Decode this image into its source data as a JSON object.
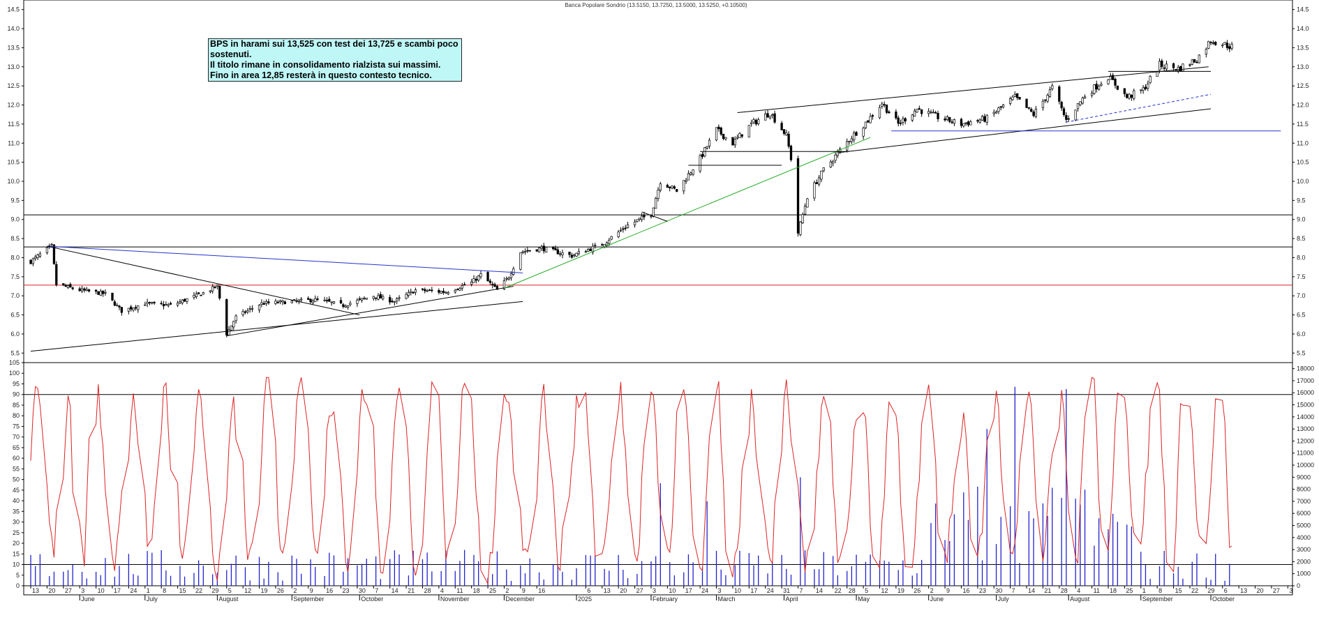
{
  "header": {
    "title": "Banca Popolare Sondrio (13.5150, 13.7250, 13.5000, 13.5250, +0.10500)"
  },
  "annotation": {
    "text": "BPS in harami sui 13,525 con test dei 13,725 e scambi poco sostenuti.\nIl titolo rimane in consolidamento rialzista sui massimi.\nFino in area 12,85 resterà in questo contesto tecnico."
  },
  "chart_data": [
    {
      "type": "candlestick",
      "title": "Banca Popolare Sondrio (13.5150, 13.7250, 13.5000, 13.5250, +0.10500)",
      "ylim": [
        5.25,
        14.75
      ],
      "y_ticks": [
        "5.5",
        "6.0",
        "6.5",
        "7.0",
        "7.5",
        "8.0",
        "8.5",
        "9.0",
        "9.5",
        "10.0",
        "10.5",
        "11.0",
        "11.5",
        "12.0",
        "12.5",
        "13.0",
        "13.5",
        "14.0",
        "14.5"
      ],
      "last": {
        "open": 13.515,
        "high": 13.725,
        "low": 13.5,
        "close": 13.525,
        "change": 0.105
      },
      "close_path": [
        [
          "2024-05-13",
          7.9
        ],
        [
          "2024-05-22",
          8.3
        ],
        [
          "2024-05-24",
          7.3
        ],
        [
          "2024-06-03",
          7.15
        ],
        [
          "2024-06-14",
          7.05
        ],
        [
          "2024-06-21",
          6.6
        ],
        [
          "2024-07-01",
          6.8
        ],
        [
          "2024-07-12",
          6.75
        ],
        [
          "2024-07-25",
          7.05
        ],
        [
          "2024-08-01",
          7.25
        ],
        [
          "2024-08-05",
          6.0
        ],
        [
          "2024-08-09",
          6.45
        ],
        [
          "2024-08-20",
          6.8
        ],
        [
          "2024-09-02",
          6.85
        ],
        [
          "2024-09-13",
          6.9
        ],
        [
          "2024-09-24",
          6.75
        ],
        [
          "2024-10-07",
          7.0
        ],
        [
          "2024-10-16",
          6.85
        ],
        [
          "2024-10-25",
          7.15
        ],
        [
          "2024-11-07",
          7.1
        ],
        [
          "2024-11-18",
          7.35
        ],
        [
          "2024-11-22",
          7.55
        ],
        [
          "2024-11-29",
          7.15
        ],
        [
          "2024-12-04",
          7.5
        ],
        [
          "2024-12-09",
          8.15
        ],
        [
          "2024-12-18",
          8.25
        ],
        [
          "2024-12-31",
          8.05
        ],
        [
          "2025-01-13",
          8.35
        ],
        [
          "2025-01-24",
          8.85
        ],
        [
          "2025-02-03",
          9.15
        ],
        [
          "2025-02-07",
          10.0
        ],
        [
          "2025-02-14",
          9.75
        ],
        [
          "2025-02-24",
          10.6
        ],
        [
          "2025-03-03",
          11.35
        ],
        [
          "2025-03-10",
          11.0
        ],
        [
          "2025-03-18",
          11.5
        ],
        [
          "2025-03-26",
          11.8
        ],
        [
          "2025-04-02",
          11.2
        ],
        [
          "2025-04-04",
          10.6
        ],
        [
          "2025-04-07",
          8.65
        ],
        [
          "2025-04-11",
          9.6
        ],
        [
          "2025-04-18",
          10.3
        ],
        [
          "2025-04-29",
          11.1
        ],
        [
          "2025-05-07",
          11.6
        ],
        [
          "2025-05-13",
          12.05
        ],
        [
          "2025-05-20",
          11.5
        ],
        [
          "2025-05-28",
          11.9
        ],
        [
          "2025-06-05",
          11.7
        ],
        [
          "2025-06-16",
          11.5
        ],
        [
          "2025-06-27",
          11.65
        ],
        [
          "2025-07-09",
          12.2
        ],
        [
          "2025-07-17",
          11.75
        ],
        [
          "2025-07-25",
          12.45
        ],
        [
          "2025-07-31",
          11.6
        ],
        [
          "2025-08-08",
          12.25
        ],
        [
          "2025-08-18",
          12.75
        ],
        [
          "2025-08-26",
          12.2
        ],
        [
          "2025-09-02",
          12.4
        ],
        [
          "2025-09-09",
          13.05
        ],
        [
          "2025-09-17",
          12.95
        ],
        [
          "2025-09-25",
          13.2
        ],
        [
          "2025-10-01",
          13.7
        ],
        [
          "2025-10-10",
          13.525
        ]
      ],
      "horizontal_levels": [
        {
          "y": 9.12,
          "color": "#000000"
        },
        {
          "y": 8.28,
          "color": "#000000"
        },
        {
          "y": 7.28,
          "color": "#dd2222"
        }
      ],
      "trend_lines": [
        {
          "points": [
            [
              "2024-05-20",
              8.3
            ],
            [
              "2024-12-10",
              7.6
            ]
          ],
          "color": "#2233cc",
          "dash": false
        },
        {
          "points": [
            [
              "2024-05-20",
              8.3
            ],
            [
              "2024-10-01",
              6.5
            ]
          ],
          "color": "#000000",
          "dash": false
        },
        {
          "points": [
            [
              "2024-05-13",
              5.55
            ],
            [
              "2024-12-10",
              6.85
            ]
          ],
          "color": "#000000",
          "dash": false
        },
        {
          "points": [
            [
              "2024-08-05",
              5.95
            ],
            [
              "2024-12-06",
              7.25
            ]
          ],
          "color": "#000000",
          "dash": false
        },
        {
          "points": [
            [
              "2024-12-02",
              7.2
            ],
            [
              "2025-05-08",
              11.15
            ]
          ],
          "color": "#22aa22",
          "dash": false
        },
        {
          "points": [
            [
              "2025-03-12",
              11.8
            ],
            [
              "2025-09-30",
              13.0
            ]
          ],
          "color": "#000000",
          "dash": false
        },
        {
          "points": [
            [
              "2025-04-24",
              10.75
            ],
            [
              "2025-10-01",
              11.9
            ]
          ],
          "color": "#000000",
          "dash": false
        },
        {
          "points": [
            [
              "2025-05-17",
              11.32
            ],
            [
              "2025-10-31",
              11.32
            ]
          ],
          "color": "#2233cc",
          "dash": false
        },
        {
          "points": [
            [
              "2025-07-31",
              11.55
            ],
            [
              "2025-10-01",
              12.28
            ]
          ],
          "color": "#2233cc",
          "dash": true
        },
        {
          "points": [
            [
              "2025-02-24",
              10.78
            ],
            [
              "2025-04-29",
              10.78
            ]
          ],
          "color": "#000000",
          "dash": false
        },
        {
          "points": [
            [
              "2025-02-19",
              10.42
            ],
            [
              "2025-03-31",
              10.42
            ]
          ],
          "color": "#000000",
          "dash": false
        },
        {
          "points": [
            [
              "2025-08-18",
              12.88
            ],
            [
              "2025-10-01",
              12.88
            ]
          ],
          "color": "#000000",
          "dash": false
        },
        {
          "points": [
            [
              "2025-01-30",
              9.2
            ],
            [
              "2025-02-10",
              8.95
            ]
          ],
          "color": "#000000",
          "dash": false
        }
      ]
    },
    {
      "type": "line",
      "series": [
        {
          "values_range": [
            0,
            100
          ],
          "color": "#dd2222"
        }
      ],
      "ylim": [
        0,
        105
      ],
      "y_ticks": [
        "0",
        "5",
        "10",
        "15",
        "20",
        "25",
        "30",
        "35",
        "40",
        "45",
        "50",
        "55",
        "60",
        "65",
        "70",
        "75",
        "80",
        "85",
        "90",
        "95",
        "100",
        "105"
      ],
      "levels": [
        90,
        10
      ]
    },
    {
      "type": "bar",
      "series": [
        {
          "color": "#2222cc"
        }
      ],
      "ylim": [
        0,
        18500
      ],
      "y_ticks": [
        "0",
        "1000",
        "2000",
        "3000",
        "4000",
        "5000",
        "6000",
        "7000",
        "8000",
        "9000",
        "10000",
        "11000",
        "12000",
        "13000",
        "14000",
        "15000",
        "16000",
        "17000",
        "18000"
      ],
      "peaks": [
        [
          "2025-02-07",
          8500
        ],
        [
          "2025-07-09",
          16500
        ],
        [
          "2025-07-31",
          16300
        ],
        [
          "2025-06-27",
          13000
        ],
        [
          "2025-04-07",
          9000
        ],
        [
          "2025-02-27",
          7000
        ]
      ]
    }
  ],
  "x_axis": {
    "range": [
      "2024-05-10",
      "2025-11-05"
    ],
    "day_labels": [
      [
        "2024-05-13",
        "13"
      ],
      [
        "2024-05-20",
        "20"
      ],
      [
        "2024-05-27",
        "27"
      ],
      [
        "2024-06-03",
        "3"
      ],
      [
        "2024-06-10",
        "10"
      ],
      [
        "2024-06-17",
        "17"
      ],
      [
        "2024-06-24",
        "24"
      ],
      [
        "2024-07-01",
        "1"
      ],
      [
        "2024-07-08",
        "8"
      ],
      [
        "2024-07-15",
        "15"
      ],
      [
        "2024-07-22",
        "22"
      ],
      [
        "2024-07-29",
        "29"
      ],
      [
        "2024-08-05",
        "5"
      ],
      [
        "2024-08-12",
        "12"
      ],
      [
        "2024-08-19",
        "19"
      ],
      [
        "2024-08-26",
        "26"
      ],
      [
        "2024-09-02",
        "2"
      ],
      [
        "2024-09-09",
        "9"
      ],
      [
        "2024-09-16",
        "16"
      ],
      [
        "2024-09-23",
        "23"
      ],
      [
        "2024-09-30",
        "30"
      ],
      [
        "2024-10-07",
        "7"
      ],
      [
        "2024-10-14",
        "14"
      ],
      [
        "2024-10-21",
        "21"
      ],
      [
        "2024-10-28",
        "28"
      ],
      [
        "2024-11-04",
        "4"
      ],
      [
        "2024-11-11",
        "11"
      ],
      [
        "2024-11-18",
        "18"
      ],
      [
        "2024-11-25",
        "25"
      ],
      [
        "2024-12-02",
        "2"
      ],
      [
        "2024-12-09",
        "9"
      ],
      [
        "2024-12-16",
        "16"
      ],
      [
        "2025-01-06",
        "6"
      ],
      [
        "2025-01-13",
        "13"
      ],
      [
        "2025-01-20",
        "20"
      ],
      [
        "2025-01-27",
        "27"
      ],
      [
        "2025-02-03",
        "3"
      ],
      [
        "2025-02-10",
        "10"
      ],
      [
        "2025-02-17",
        "17"
      ],
      [
        "2025-02-24",
        "24"
      ],
      [
        "2025-03-03",
        "3"
      ],
      [
        "2025-03-10",
        "10"
      ],
      [
        "2025-03-17",
        "17"
      ],
      [
        "2025-03-24",
        "24"
      ],
      [
        "2025-03-31",
        "31"
      ],
      [
        "2025-04-07",
        "7"
      ],
      [
        "2025-04-14",
        "14"
      ],
      [
        "2025-04-22",
        "22"
      ],
      [
        "2025-04-28",
        "28"
      ],
      [
        "2025-05-05",
        "5"
      ],
      [
        "2025-05-12",
        "12"
      ],
      [
        "2025-05-19",
        "19"
      ],
      [
        "2025-05-26",
        "26"
      ],
      [
        "2025-06-02",
        "2"
      ],
      [
        "2025-06-09",
        "9"
      ],
      [
        "2025-06-16",
        "16"
      ],
      [
        "2025-06-23",
        "23"
      ],
      [
        "2025-06-30",
        "30"
      ],
      [
        "2025-07-07",
        "7"
      ],
      [
        "2025-07-14",
        "14"
      ],
      [
        "2025-07-21",
        "21"
      ],
      [
        "2025-07-28",
        "28"
      ],
      [
        "2025-08-04",
        "4"
      ],
      [
        "2025-08-11",
        "11"
      ],
      [
        "2025-08-18",
        "18"
      ],
      [
        "2025-08-25",
        "25"
      ],
      [
        "2025-09-01",
        "1"
      ],
      [
        "2025-09-08",
        "8"
      ],
      [
        "2025-09-15",
        "15"
      ],
      [
        "2025-09-22",
        "22"
      ],
      [
        "2025-09-29",
        "29"
      ],
      [
        "2025-10-06",
        "6"
      ],
      [
        "2025-10-13",
        "13"
      ],
      [
        "2025-10-20",
        "20"
      ],
      [
        "2025-10-27",
        "27"
      ],
      [
        "2025-11-03",
        "3"
      ]
    ],
    "month_labels": [
      [
        "2024-06-03",
        "June"
      ],
      [
        "2024-07-01",
        "July"
      ],
      [
        "2024-08-01",
        "August"
      ],
      [
        "2024-09-02",
        "September"
      ],
      [
        "2024-10-01",
        "October"
      ],
      [
        "2024-11-04",
        "November"
      ],
      [
        "2024-12-02",
        "December"
      ],
      [
        "2025-01-02",
        "2025"
      ],
      [
        "2025-02-03",
        "February"
      ],
      [
        "2025-03-03",
        "March"
      ],
      [
        "2025-04-01",
        "April"
      ],
      [
        "2025-05-02",
        "May"
      ],
      [
        "2025-06-02",
        "June"
      ],
      [
        "2025-07-01",
        "July"
      ],
      [
        "2025-08-01",
        "August"
      ],
      [
        "2025-09-01",
        "September"
      ],
      [
        "2025-10-01",
        "October"
      ]
    ]
  }
}
